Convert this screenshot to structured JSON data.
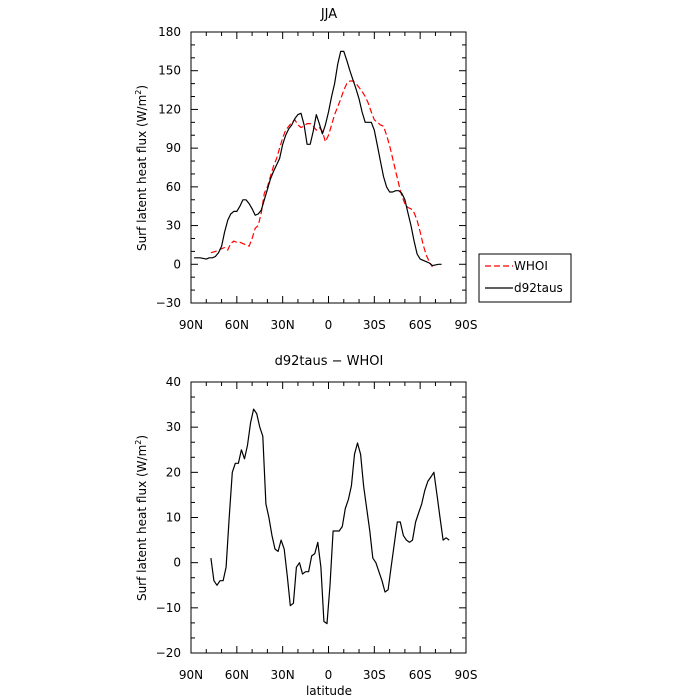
{
  "chart_data": [
    {
      "type": "line",
      "title": "JJA",
      "xlabel": "",
      "ylabel": "Surf latent heat flux (W/m",
      "ylabel_sup": "2",
      "ylabel_close": ")",
      "xlim": [
        90,
        -90
      ],
      "ylim": [
        -30,
        180
      ],
      "yticks": [
        -30,
        0,
        30,
        60,
        90,
        120,
        150,
        180
      ],
      "xticks": [
        {
          "value": 90,
          "label": "90N"
        },
        {
          "value": 60,
          "label": "60N"
        },
        {
          "value": 30,
          "label": "30N"
        },
        {
          "value": 0,
          "label": "0"
        },
        {
          "value": -30,
          "label": "30S"
        },
        {
          "value": -60,
          "label": "60S"
        },
        {
          "value": -90,
          "label": "90S"
        }
      ],
      "legend": "right",
      "series": [
        {
          "name": "WHOI",
          "color": "#ff0000",
          "dash": "dashed",
          "points": [
            [
              77,
              9
            ],
            [
              74,
              10
            ],
            [
              72,
              11
            ],
            [
              68,
              13
            ],
            [
              66,
              11
            ],
            [
              64,
              16
            ],
            [
              62,
              18
            ],
            [
              60,
              17
            ],
            [
              58,
              17
            ],
            [
              56,
              16
            ],
            [
              54,
              15
            ],
            [
              52,
              14
            ],
            [
              50,
              20
            ],
            [
              48,
              28
            ],
            [
              46,
              30
            ],
            [
              44,
              40
            ],
            [
              42,
              55
            ],
            [
              40,
              60
            ],
            [
              38,
              68
            ],
            [
              36,
              76
            ],
            [
              34,
              82
            ],
            [
              32,
              90
            ],
            [
              30,
              98
            ],
            [
              28,
              104
            ],
            [
              26,
              107
            ],
            [
              24,
              110
            ],
            [
              22,
              112
            ],
            [
              20,
              108
            ],
            [
              18,
              106
            ],
            [
              16,
              107
            ],
            [
              14,
              109
            ],
            [
              12,
              109
            ],
            [
              10,
              107
            ],
            [
              8,
              104
            ],
            [
              6,
              106
            ],
            [
              4,
              103
            ],
            [
              2,
              95
            ],
            [
              0,
              100
            ],
            [
              -2,
              108
            ],
            [
              -4,
              116
            ],
            [
              -6,
              122
            ],
            [
              -8,
              128
            ],
            [
              -10,
              135
            ],
            [
              -12,
              140
            ],
            [
              -14,
              142
            ],
            [
              -16,
              142
            ],
            [
              -18,
              140
            ],
            [
              -20,
              137
            ],
            [
              -22,
              134
            ],
            [
              -24,
              130
            ],
            [
              -26,
              125
            ],
            [
              -28,
              118
            ],
            [
              -30,
              112
            ],
            [
              -32,
              110
            ],
            [
              -34,
              108
            ],
            [
              -36,
              107
            ],
            [
              -38,
              100
            ],
            [
              -40,
              92
            ],
            [
              -42,
              82
            ],
            [
              -44,
              72
            ],
            [
              -46,
              62
            ],
            [
              -48,
              53
            ],
            [
              -50,
              47
            ],
            [
              -52,
              44
            ],
            [
              -54,
              43
            ],
            [
              -56,
              40
            ],
            [
              -58,
              34
            ],
            [
              -60,
              25
            ],
            [
              -62,
              15
            ],
            [
              -64,
              7
            ],
            [
              -66,
              2
            ],
            [
              -68,
              -2
            ]
          ]
        },
        {
          "name": "d92taus",
          "color": "#000000",
          "dash": "solid",
          "points": [
            [
              88,
              5
            ],
            [
              84,
              5
            ],
            [
              80,
              4
            ],
            [
              78,
              5
            ],
            [
              76,
              5
            ],
            [
              74,
              6
            ],
            [
              72,
              9
            ],
            [
              70,
              14
            ],
            [
              68,
              25
            ],
            [
              66,
              34
            ],
            [
              64,
              39
            ],
            [
              62,
              41
            ],
            [
              60,
              41
            ],
            [
              58,
              45
            ],
            [
              56,
              50
            ],
            [
              54,
              50
            ],
            [
              52,
              47
            ],
            [
              50,
              43
            ],
            [
              48,
              38
            ],
            [
              46,
              39
            ],
            [
              44,
              42
            ],
            [
              42,
              50
            ],
            [
              40,
              58
            ],
            [
              38,
              66
            ],
            [
              36,
              72
            ],
            [
              34,
              77
            ],
            [
              32,
              82
            ],
            [
              30,
              93
            ],
            [
              28,
              100
            ],
            [
              26,
              105
            ],
            [
              24,
              108
            ],
            [
              22,
              113
            ],
            [
              20,
              116
            ],
            [
              18,
              117
            ],
            [
              16,
              108
            ],
            [
              14,
              93
            ],
            [
              12,
              93
            ],
            [
              10,
              103
            ],
            [
              8,
              116
            ],
            [
              6,
              109
            ],
            [
              4,
              101
            ],
            [
              2,
              108
            ],
            [
              0,
              118
            ],
            [
              -2,
              130
            ],
            [
              -4,
              140
            ],
            [
              -6,
              155
            ],
            [
              -8,
              165
            ],
            [
              -10,
              165
            ],
            [
              -12,
              158
            ],
            [
              -14,
              150
            ],
            [
              -16,
              143
            ],
            [
              -18,
              136
            ],
            [
              -20,
              128
            ],
            [
              -22,
              118
            ],
            [
              -24,
              110
            ],
            [
              -26,
              110
            ],
            [
              -28,
              110
            ],
            [
              -30,
              104
            ],
            [
              -32,
              92
            ],
            [
              -34,
              80
            ],
            [
              -36,
              68
            ],
            [
              -38,
              60
            ],
            [
              -40,
              56
            ],
            [
              -42,
              56
            ],
            [
              -44,
              57
            ],
            [
              -46,
              57
            ],
            [
              -48,
              55
            ],
            [
              -50,
              50
            ],
            [
              -52,
              40
            ],
            [
              -54,
              30
            ],
            [
              -56,
              18
            ],
            [
              -58,
              8
            ],
            [
              -60,
              4
            ],
            [
              -64,
              2
            ],
            [
              -66,
              1
            ],
            [
              -68,
              -1
            ],
            [
              -72,
              0
            ],
            [
              -74,
              0
            ]
          ]
        }
      ]
    },
    {
      "type": "line",
      "title": "d92taus − WHOI",
      "xlabel": "latitude",
      "ylabel": "Surf latent heat flux (W/m",
      "ylabel_sup": "2",
      "ylabel_close": ")",
      "xlim": [
        90,
        -90
      ],
      "ylim": [
        -20,
        40
      ],
      "yticks": [
        -20,
        -10,
        0,
        10,
        20,
        30,
        40
      ],
      "xticks": [
        {
          "value": 90,
          "label": "90N"
        },
        {
          "value": 60,
          "label": "60N"
        },
        {
          "value": 30,
          "label": "30N"
        },
        {
          "value": 0,
          "label": "0"
        },
        {
          "value": -30,
          "label": "30S"
        },
        {
          "value": -60,
          "label": "60S"
        },
        {
          "value": -90,
          "label": "90S"
        }
      ],
      "series": [
        {
          "name": "",
          "color": "#000000",
          "dash": "solid",
          "points": [
            [
              77,
              1
            ],
            [
              75,
              -4
            ],
            [
              73,
              -5
            ],
            [
              71,
              -4
            ],
            [
              69,
              -4
            ],
            [
              67,
              -1
            ],
            [
              65,
              10
            ],
            [
              63,
              20
            ],
            [
              61,
              22
            ],
            [
              59,
              22
            ],
            [
              57,
              25
            ],
            [
              55,
              23
            ],
            [
              53,
              26
            ],
            [
              51,
              31
            ],
            [
              49,
              34
            ],
            [
              47,
              33
            ],
            [
              45,
              30
            ],
            [
              43,
              28
            ],
            [
              41,
              13
            ],
            [
              39,
              10
            ],
            [
              37,
              6
            ],
            [
              35,
              3
            ],
            [
              33,
              2.5
            ],
            [
              31,
              5
            ],
            [
              29,
              3
            ],
            [
              27,
              -3
            ],
            [
              25,
              -9.5
            ],
            [
              23,
              -9
            ],
            [
              21,
              -1
            ],
            [
              19,
              0
            ],
            [
              17,
              -2.5
            ],
            [
              15,
              -2
            ],
            [
              13,
              -2
            ],
            [
              11,
              1.5
            ],
            [
              9,
              2
            ],
            [
              7,
              4.5
            ],
            [
              5,
              -1
            ],
            [
              3,
              -13
            ],
            [
              1,
              -13.5
            ],
            [
              -1,
              -5
            ],
            [
              -3,
              7
            ],
            [
              -5,
              7
            ],
            [
              -7,
              7
            ],
            [
              -9,
              8
            ],
            [
              -11,
              12
            ],
            [
              -13,
              14
            ],
            [
              -15,
              17
            ],
            [
              -17,
              24
            ],
            [
              -19,
              26.5
            ],
            [
              -21,
              24
            ],
            [
              -23,
              17
            ],
            [
              -25,
              12
            ],
            [
              -27,
              7
            ],
            [
              -29,
              1
            ],
            [
              -31,
              0
            ],
            [
              -33,
              -2
            ],
            [
              -35,
              -4
            ],
            [
              -37,
              -6.5
            ],
            [
              -39,
              -6
            ],
            [
              -41,
              -1
            ],
            [
              -43,
              4
            ],
            [
              -45,
              9
            ],
            [
              -47,
              9
            ],
            [
              -49,
              6
            ],
            [
              -51,
              5
            ],
            [
              -53,
              4.5
            ],
            [
              -55,
              5
            ],
            [
              -57,
              9
            ],
            [
              -59,
              11
            ],
            [
              -61,
              13
            ],
            [
              -63,
              16
            ],
            [
              -65,
              18
            ],
            [
              -67,
              19
            ],
            [
              -69,
              20
            ],
            [
              -71,
              15
            ],
            [
              -73,
              10
            ],
            [
              -75,
              5
            ],
            [
              -77,
              5.5
            ],
            [
              -79,
              5
            ]
          ]
        }
      ]
    }
  ]
}
